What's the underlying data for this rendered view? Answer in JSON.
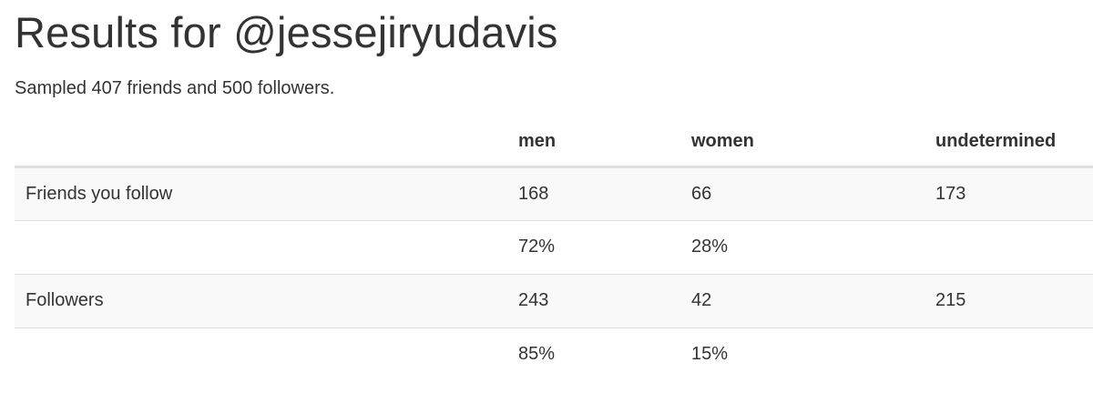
{
  "header": {
    "title": "Results for @jessejiryudavis",
    "summary": "Sampled 407 friends and 500 followers."
  },
  "table": {
    "columns": [
      "",
      "men",
      "women",
      "undetermined"
    ],
    "rows": [
      {
        "label": "Friends you follow",
        "men": "168",
        "women": "66",
        "undetermined": "173"
      },
      {
        "label": "",
        "men": "72%",
        "women": "28%",
        "undetermined": ""
      },
      {
        "label": "Followers",
        "men": "243",
        "women": "42",
        "undetermined": "215"
      },
      {
        "label": "",
        "men": "85%",
        "women": "15%",
        "undetermined": ""
      }
    ]
  },
  "colors": {
    "text": "#333333",
    "row_stripe": "#f9f9f9",
    "border": "#dddddd"
  }
}
